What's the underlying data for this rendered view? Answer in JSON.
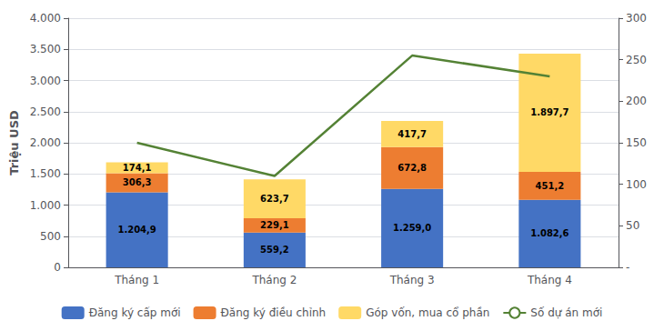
{
  "chart_data": {
    "type": "bar",
    "stacked": true,
    "categories": [
      "Tháng 1",
      "Tháng 2",
      "Tháng 3",
      "Tháng 4"
    ],
    "series": [
      {
        "name": "Đăng ký cấp mới",
        "type": "bar",
        "color": "#4472c4",
        "values": [
          1204.9,
          559.2,
          1259.0,
          1082.6
        ],
        "data_labels": true,
        "value_labels": [
          "1.204,9",
          "559,2",
          "1.259,0",
          "1.082,6"
        ]
      },
      {
        "name": "Đăng ký điều chỉnh",
        "type": "bar",
        "color": "#ed7d31",
        "values": [
          306.3,
          229.1,
          672.8,
          451.2
        ],
        "data_labels": true,
        "value_labels": [
          "306,3",
          "229,1",
          "672,8",
          "451,2"
        ]
      },
      {
        "name": "Góp vốn, mua cổ phần",
        "type": "bar",
        "color": "#ffd966",
        "values": [
          174.1,
          623.7,
          417.7,
          1897.7
        ],
        "data_labels": true,
        "value_labels": [
          "174,1",
          "623,7",
          "417,7",
          "1.897,7"
        ]
      },
      {
        "name": "Số dự án mới",
        "type": "line",
        "color": "#548235",
        "axis": "y2",
        "values": [
          150,
          110,
          255,
          230
        ]
      }
    ],
    "ylabel": "Triệu USD",
    "ylim": [
      0,
      4000
    ],
    "yticks": [
      0,
      500,
      {
        "value": 1000,
        "label": "1.000"
      },
      {
        "value": 1500,
        "label": "1.500"
      },
      {
        "value": 2000,
        "label": "2.000"
      },
      {
        "value": 2500,
        "label": "2.500"
      },
      {
        "value": 3000,
        "label": "3.000"
      },
      {
        "value": 3500,
        "label": "3.500"
      },
      {
        "value": 4000,
        "label": "4.000"
      }
    ],
    "y2lim": [
      0,
      300
    ],
    "y2ticks": [
      {
        "value": 0,
        "label": "-"
      },
      50,
      100,
      150,
      200,
      250,
      300
    ],
    "grid": true,
    "legend": "bottom"
  }
}
